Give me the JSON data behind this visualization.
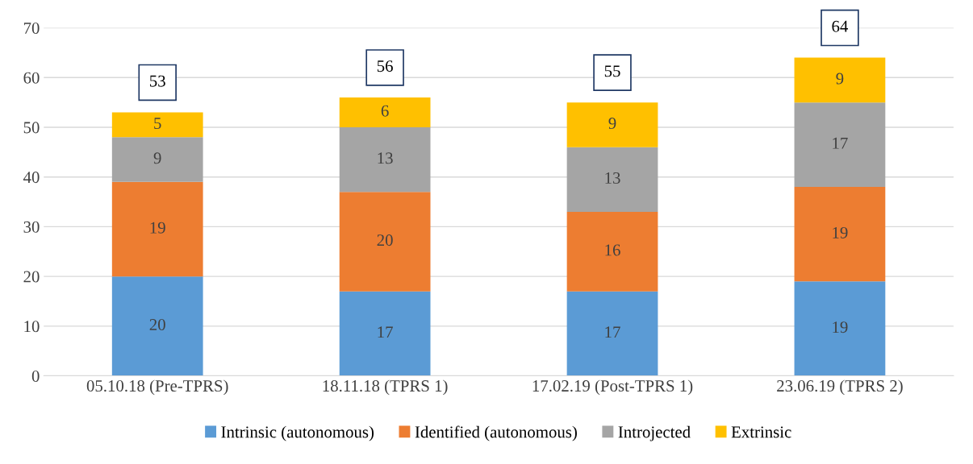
{
  "chart_data": {
    "type": "bar",
    "stacked": true,
    "categories": [
      "05.10.18 (Pre-TPRS)",
      "18.11.18 (TPRS 1)",
      "17.02.19 (Post-TPRS 1)",
      "23.06.19 (TPRS 2)"
    ],
    "series": [
      {
        "name": "Intrinsic (autonomous)",
        "color": "#5b9bd5",
        "values": [
          20,
          17,
          17,
          19
        ]
      },
      {
        "name": "Identified (autonomous)",
        "color": "#ed7d31",
        "values": [
          19,
          20,
          16,
          19
        ]
      },
      {
        "name": "Introjected",
        "color": "#a5a5a5",
        "values": [
          9,
          13,
          13,
          17
        ]
      },
      {
        "name": "Extrinsic",
        "color": "#ffc000",
        "values": [
          5,
          6,
          9,
          9
        ]
      }
    ],
    "totals": [
      "53",
      "56",
      "55",
      "64"
    ],
    "data_labels": true,
    "ylim": [
      0,
      70
    ],
    "yticks": [
      0,
      10,
      20,
      30,
      40,
      50,
      60,
      70
    ],
    "grid": "y",
    "legend": "bottom"
  }
}
